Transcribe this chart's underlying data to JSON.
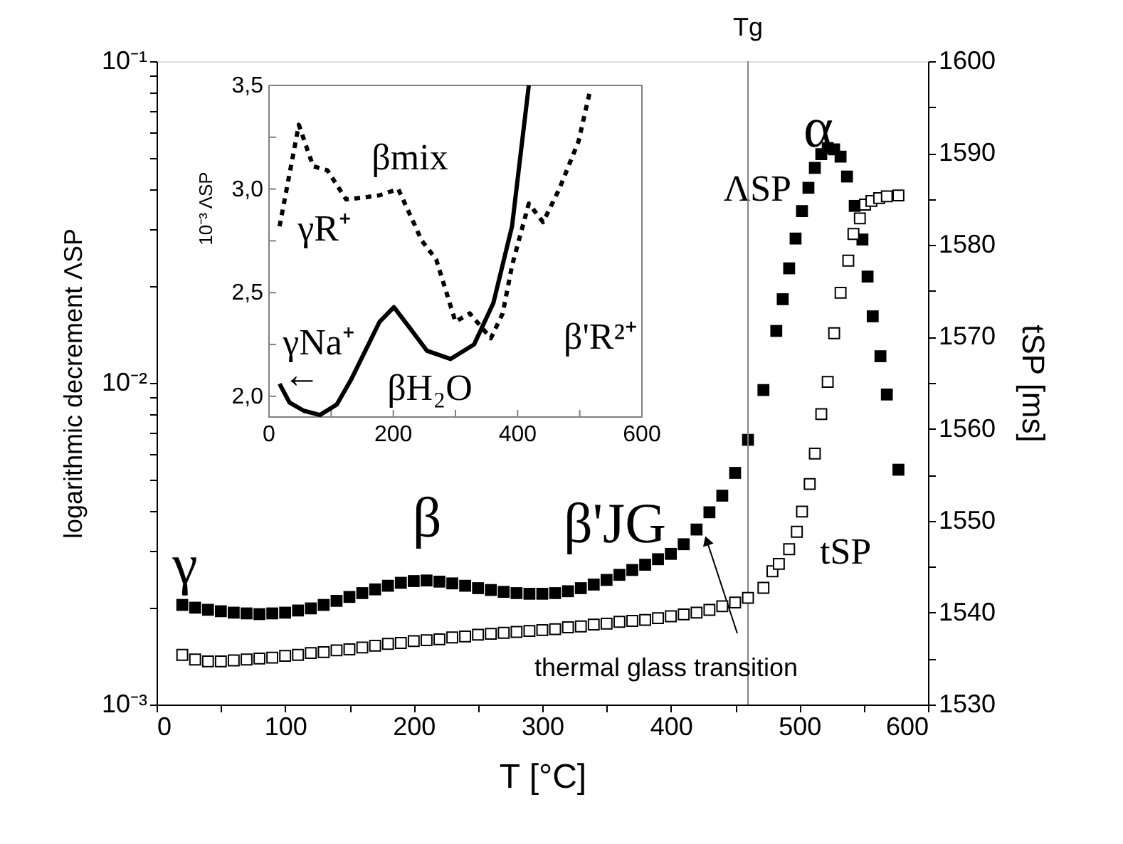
{
  "chart_data": [
    {
      "type": "scatter",
      "xlabel": "T [°C]",
      "ylabel": "logarithmic decrement  ΛSP",
      "y2label": "tSP [ms]",
      "marker": "square",
      "log": "y",
      "xlim": [
        0,
        600
      ],
      "xticks": [
        0,
        {
          "value": 50,
          "label": null
        },
        100,
        {
          "value": 150,
          "label": null
        },
        200,
        {
          "value": 250,
          "label": null
        },
        300,
        {
          "value": 350,
          "label": null
        },
        400,
        {
          "value": 450,
          "label": null
        },
        500,
        {
          "value": 550,
          "label": null
        },
        600
      ],
      "ylim": [
        0.001,
        0.1
      ],
      "yticks": [
        {
          "value": 0.001,
          "label": "10⁻³"
        },
        {
          "value": 0.002,
          "label": null
        },
        {
          "value": 0.003,
          "label": null
        },
        {
          "value": 0.004,
          "label": null
        },
        {
          "value": 0.005,
          "label": null
        },
        {
          "value": 0.006,
          "label": null
        },
        {
          "value": 0.007,
          "label": null
        },
        {
          "value": 0.008,
          "label": null
        },
        {
          "value": 0.009,
          "label": null
        },
        {
          "value": 0.01,
          "label": "10⁻²"
        },
        {
          "value": 0.02,
          "label": null
        },
        {
          "value": 0.03,
          "label": null
        },
        {
          "value": 0.04,
          "label": null
        },
        {
          "value": 0.05,
          "label": null
        },
        {
          "value": 0.06,
          "label": null
        },
        {
          "value": 0.07,
          "label": null
        },
        {
          "value": 0.08,
          "label": null
        },
        {
          "value": 0.09,
          "label": null
        },
        {
          "value": 0.1,
          "label": "10⁻¹"
        }
      ],
      "y2lim": [
        1530,
        1600
      ],
      "y2ticks": [
        1530,
        {
          "value": 1535,
          "label": null
        },
        1540,
        {
          "value": 1545,
          "label": null
        },
        1550,
        {
          "value": 1555,
          "label": null
        },
        1560,
        {
          "value": 1565,
          "label": null
        },
        1570,
        {
          "value": 1575,
          "label": null
        },
        1580,
        {
          "value": 1585,
          "label": null
        },
        1590,
        {
          "value": 1595,
          "label": null
        },
        1600
      ],
      "ref_lines": [
        {
          "axis": "x",
          "value": 460,
          "label": "Tg",
          "color": "#808080"
        }
      ],
      "annotations": [
        "γ",
        "β",
        "β'JG",
        "α",
        {
          "text": "thermal glass transition",
          "x": 428,
          "y": 0.00323
        }
      ],
      "series": [
        {
          "name": "ΛSP",
          "color": "#000000",
          "x": [
            20,
            30,
            40,
            50,
            60,
            70,
            80,
            90,
            100,
            110,
            120,
            130,
            140,
            150,
            160,
            170,
            180,
            190,
            200,
            210,
            220,
            230,
            240,
            250,
            260,
            270,
            280,
            290,
            300,
            310,
            320,
            330,
            340,
            350,
            360,
            370,
            380,
            390,
            400,
            410,
            420,
            430,
            440,
            450,
            460,
            472,
            482,
            487,
            492,
            497,
            502,
            507,
            512,
            517,
            522,
            527,
            532,
            537,
            543,
            549,
            553,
            557,
            563,
            568,
            577
          ],
          "values": [
            0.00204,
            0.002,
            0.00197,
            0.00195,
            0.00193,
            0.00192,
            0.00191,
            0.00192,
            0.00193,
            0.00196,
            0.00199,
            0.00204,
            0.0021,
            0.00216,
            0.00222,
            0.00228,
            0.00234,
            0.00239,
            0.00242,
            0.00243,
            0.00241,
            0.00238,
            0.00234,
            0.0023,
            0.00227,
            0.00224,
            0.00222,
            0.00221,
            0.00221,
            0.00222,
            0.00225,
            0.0023,
            0.00236,
            0.00244,
            0.00253,
            0.00262,
            0.00272,
            0.00283,
            0.00294,
            0.00315,
            0.0035,
            0.00396,
            0.00446,
            0.00525,
            0.00665,
            0.0095,
            0.0145,
            0.0182,
            0.0227,
            0.0281,
            0.0342,
            0.0404,
            0.0466,
            0.0514,
            0.0537,
            0.0532,
            0.0505,
            0.0438,
            0.0355,
            0.0279,
            0.0214,
            0.0161,
            0.0121,
            0.0092,
            0.00537
          ]
        },
        {
          "name": "tSP",
          "color": "#000000",
          "axis": "y2",
          "x": [
            20,
            30,
            40,
            50,
            60,
            70,
            80,
            90,
            100,
            110,
            120,
            130,
            140,
            150,
            160,
            170,
            180,
            190,
            200,
            210,
            220,
            230,
            240,
            250,
            260,
            270,
            280,
            290,
            300,
            310,
            320,
            330,
            340,
            350,
            360,
            370,
            380,
            390,
            400,
            410,
            420,
            430,
            440,
            450,
            460,
            472,
            479,
            484,
            492,
            498,
            502,
            508,
            512,
            517,
            522,
            527,
            532,
            538,
            542,
            547,
            551,
            556,
            562,
            568,
            577
          ],
          "values": [
            1535.4,
            1534.9,
            1534.7,
            1534.7,
            1534.8,
            1534.9,
            1535,
            1535.1,
            1535.3,
            1535.4,
            1535.6,
            1535.7,
            1535.9,
            1536,
            1536.2,
            1536.4,
            1536.6,
            1536.7,
            1536.9,
            1537,
            1537.1,
            1537.3,
            1537.4,
            1537.6,
            1537.7,
            1537.8,
            1537.9,
            1538,
            1538.1,
            1538.2,
            1538.4,
            1538.5,
            1538.7,
            1538.8,
            1539,
            1539.1,
            1539.2,
            1539.4,
            1539.6,
            1539.8,
            1540,
            1540.3,
            1540.7,
            1541.1,
            1541.6,
            1542.7,
            1544.5,
            1545.3,
            1546.9,
            1548.8,
            1551,
            1554,
            1557.3,
            1561.6,
            1565.1,
            1570.4,
            1574.8,
            1578.3,
            1581.2,
            1582.9,
            1584.4,
            1584.8,
            1585.1,
            1585.3,
            1585.4
          ]
        }
      ]
    },
    {
      "type": "line",
      "ylabel": "10⁻³ ΛSP",
      "xlim": [
        0,
        600
      ],
      "xticks": [
        0,
        {
          "value": 100,
          "label": null
        },
        200,
        {
          "value": 300,
          "label": null
        },
        400,
        {
          "value": 500,
          "label": null
        },
        600
      ],
      "ylim": [
        1.9,
        3.5
      ],
      "yticks": [
        {
          "value": 2.0,
          "label": "2,0"
        },
        {
          "value": 2.25,
          "label": null
        },
        {
          "value": 2.5,
          "label": "2,5"
        },
        {
          "value": 2.75,
          "label": null
        },
        {
          "value": 3.0,
          "label": "3,0"
        },
        {
          "value": 3.25,
          "label": null
        },
        {
          "value": 3.5,
          "label": "3,5"
        }
      ],
      "annotations": [
        "γR⁺",
        "βmix",
        "γNa⁺",
        "βH₂O",
        "β'R²⁺",
        "←"
      ],
      "series": [
        {
          "color": "#000000",
          "line_style": "solid",
          "x": [
            17,
            33,
            56,
            82,
            109,
            132,
            155,
            178,
            201,
            224,
            254,
            292,
            330,
            361,
            391,
            418
          ],
          "values": [
            2.06,
            1.97,
            1.93,
            1.91,
            1.96,
            2.08,
            2.22,
            2.36,
            2.43,
            2.34,
            2.22,
            2.18,
            2.25,
            2.45,
            2.82,
            3.5
          ]
        },
        {
          "color": "#000000",
          "line_style": "dotted",
          "x": [
            17,
            48,
            71,
            94,
            124,
            155,
            178,
            208,
            246,
            269,
            300,
            323,
            357,
            376,
            391,
            418,
            441,
            467,
            498,
            517
          ],
          "values": [
            2.82,
            3.31,
            3.11,
            3.09,
            2.95,
            2.96,
            2.97,
            3.0,
            2.75,
            2.66,
            2.36,
            2.4,
            2.28,
            2.4,
            2.63,
            2.93,
            2.84,
            3.0,
            3.23,
            3.48
          ]
        }
      ]
    }
  ]
}
